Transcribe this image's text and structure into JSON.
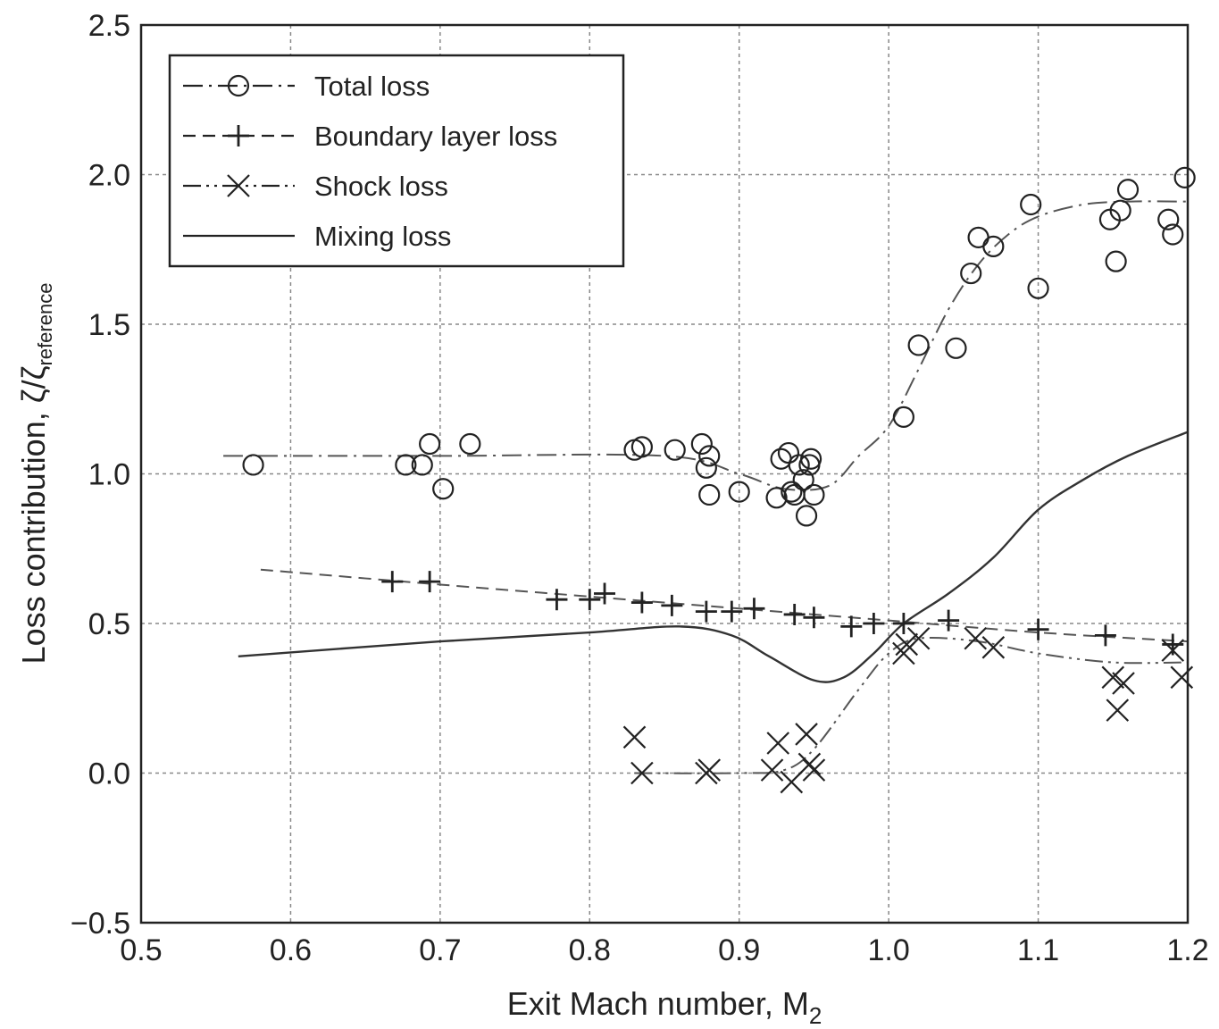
{
  "chart_data": {
    "type": "scatter",
    "xlabel": "Exit Mach number, M",
    "xlabel_sub": "2",
    "ylabel": "Loss contribution, ζ/ζ",
    "ylabel_sub": "reference",
    "xlim": [
      0.5,
      1.2
    ],
    "ylim": [
      -0.5,
      2.5
    ],
    "x_ticks": [
      "0.5",
      "0.6",
      "0.7",
      "0.8",
      "0.9",
      "1.0",
      "1.1",
      "1.2"
    ],
    "y_ticks": [
      "−0.5",
      "0.0",
      "0.5",
      "1.0",
      "1.5",
      "2.0",
      "2.5"
    ],
    "grid": true,
    "legend_position": "top-left",
    "series": [
      {
        "name": "Total loss",
        "marker": "circle",
        "line_style": "dash-dot",
        "points": [
          [
            0.575,
            1.03
          ],
          [
            0.677,
            1.03
          ],
          [
            0.688,
            1.03
          ],
          [
            0.693,
            1.1
          ],
          [
            0.702,
            0.95
          ],
          [
            0.72,
            1.1
          ],
          [
            0.83,
            1.08
          ],
          [
            0.835,
            1.09
          ],
          [
            0.857,
            1.08
          ],
          [
            0.875,
            1.1
          ],
          [
            0.878,
            1.02
          ],
          [
            0.88,
            1.06
          ],
          [
            0.88,
            0.93
          ],
          [
            0.9,
            0.94
          ],
          [
            0.925,
            0.92
          ],
          [
            0.928,
            1.05
          ],
          [
            0.933,
            1.07
          ],
          [
            0.935,
            0.94
          ],
          [
            0.937,
            0.93
          ],
          [
            0.94,
            1.03
          ],
          [
            0.943,
            0.98
          ],
          [
            0.945,
            0.86
          ],
          [
            0.947,
            1.03
          ],
          [
            0.948,
            1.05
          ],
          [
            0.95,
            0.93
          ],
          [
            1.01,
            1.19
          ],
          [
            1.02,
            1.43
          ],
          [
            1.045,
            1.42
          ],
          [
            1.055,
            1.67
          ],
          [
            1.06,
            1.79
          ],
          [
            1.07,
            1.76
          ],
          [
            1.095,
            1.9
          ],
          [
            1.1,
            1.62
          ],
          [
            1.148,
            1.85
          ],
          [
            1.152,
            1.71
          ],
          [
            1.155,
            1.88
          ],
          [
            1.16,
            1.95
          ],
          [
            1.187,
            1.85
          ],
          [
            1.19,
            1.8
          ],
          [
            1.198,
            1.99
          ]
        ],
        "curve": [
          [
            0.555,
            1.06
          ],
          [
            0.7,
            1.06
          ],
          [
            0.85,
            1.06
          ],
          [
            0.9,
            1.0
          ],
          [
            0.93,
            0.95
          ],
          [
            0.96,
            0.96
          ],
          [
            0.98,
            1.06
          ],
          [
            1.0,
            1.16
          ],
          [
            1.02,
            1.35
          ],
          [
            1.04,
            1.55
          ],
          [
            1.06,
            1.7
          ],
          [
            1.08,
            1.8
          ],
          [
            1.1,
            1.86
          ],
          [
            1.13,
            1.9
          ],
          [
            1.16,
            1.91
          ],
          [
            1.2,
            1.91
          ]
        ]
      },
      {
        "name": "Boundary layer loss",
        "marker": "plus",
        "line_style": "dashed",
        "points": [
          [
            0.668,
            0.64
          ],
          [
            0.693,
            0.64
          ],
          [
            0.778,
            0.58
          ],
          [
            0.8,
            0.58
          ],
          [
            0.81,
            0.6
          ],
          [
            0.835,
            0.57
          ],
          [
            0.855,
            0.56
          ],
          [
            0.878,
            0.54
          ],
          [
            0.895,
            0.54
          ],
          [
            0.91,
            0.55
          ],
          [
            0.937,
            0.53
          ],
          [
            0.95,
            0.52
          ],
          [
            0.975,
            0.49
          ],
          [
            0.99,
            0.5
          ],
          [
            1.01,
            0.5
          ],
          [
            1.04,
            0.51
          ],
          [
            1.1,
            0.48
          ],
          [
            1.145,
            0.46
          ],
          [
            1.19,
            0.43
          ]
        ],
        "curve": [
          [
            0.58,
            0.68
          ],
          [
            0.7,
            0.63
          ],
          [
            0.8,
            0.59
          ],
          [
            0.9,
            0.55
          ],
          [
            1.0,
            0.51
          ],
          [
            1.1,
            0.47
          ],
          [
            1.2,
            0.44
          ]
        ]
      },
      {
        "name": "Shock loss",
        "marker": "x",
        "line_style": "dash-dot-dot",
        "points": [
          [
            0.83,
            0.12
          ],
          [
            0.835,
            0.0
          ],
          [
            0.878,
            0.0
          ],
          [
            0.88,
            0.01
          ],
          [
            0.922,
            0.01
          ],
          [
            0.926,
            0.1
          ],
          [
            0.935,
            -0.03
          ],
          [
            0.945,
            0.13
          ],
          [
            0.947,
            0.03
          ],
          [
            0.95,
            0.01
          ],
          [
            1.01,
            0.4
          ],
          [
            1.012,
            0.43
          ],
          [
            1.02,
            0.45
          ],
          [
            1.058,
            0.45
          ],
          [
            1.07,
            0.42
          ],
          [
            1.15,
            0.32
          ],
          [
            1.153,
            0.21
          ],
          [
            1.157,
            0.3
          ],
          [
            1.19,
            0.41
          ],
          [
            1.196,
            0.32
          ]
        ],
        "curve": [
          [
            0.83,
            0.0
          ],
          [
            0.9,
            0.0
          ],
          [
            0.93,
            0.01
          ],
          [
            0.95,
            0.08
          ],
          [
            0.98,
            0.28
          ],
          [
            1.0,
            0.4
          ],
          [
            1.02,
            0.45
          ],
          [
            1.06,
            0.44
          ],
          [
            1.1,
            0.4
          ],
          [
            1.15,
            0.37
          ],
          [
            1.2,
            0.37
          ]
        ]
      },
      {
        "name": "Mixing loss",
        "marker": "none",
        "line_style": "solid",
        "points": [],
        "curve": [
          [
            0.565,
            0.39
          ],
          [
            0.7,
            0.44
          ],
          [
            0.8,
            0.47
          ],
          [
            0.86,
            0.49
          ],
          [
            0.895,
            0.46
          ],
          [
            0.92,
            0.39
          ],
          [
            0.95,
            0.31
          ],
          [
            0.97,
            0.32
          ],
          [
            0.99,
            0.4
          ],
          [
            1.01,
            0.5
          ],
          [
            1.04,
            0.6
          ],
          [
            1.07,
            0.72
          ],
          [
            1.1,
            0.88
          ],
          [
            1.13,
            0.98
          ],
          [
            1.16,
            1.06
          ],
          [
            1.2,
            1.14
          ]
        ]
      }
    ]
  }
}
